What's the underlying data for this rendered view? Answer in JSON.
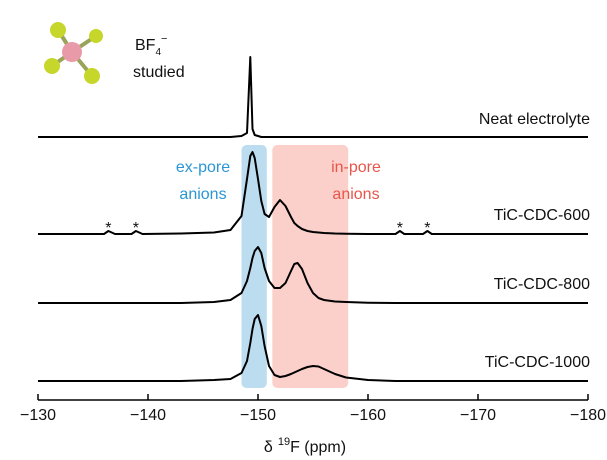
{
  "chart_data": {
    "type": "line",
    "x_label": {
      "prefix": "δ",
      "sup": "19",
      "main": "F (ppm)"
    },
    "molecule_label": {
      "main": "BF",
      "sub": "4",
      "sup": "−",
      "line2": "studied"
    },
    "xlim": [
      -130,
      -180
    ],
    "xticks": [
      {
        "value": -130,
        "label": "−130"
      },
      {
        "value": -140,
        "label": "−140"
      },
      {
        "value": -150,
        "label": "−150"
      },
      {
        "value": -160,
        "label": "−160"
      },
      {
        "value": -170,
        "label": "−170"
      },
      {
        "value": -180,
        "label": "−180"
      }
    ],
    "ylim": [
      0,
      100
    ],
    "x": [
      -130,
      -134,
      -136,
      -136.4,
      -137,
      -138.5,
      -138.9,
      -139.5,
      -143,
      -146,
      -147.5,
      -148.5,
      -149,
      -149.3,
      -149.5,
      -149.7,
      -150,
      -150.3,
      -150.6,
      -151,
      -151.5,
      -152,
      -152.5,
      -153,
      -153.3,
      -153.6,
      -154,
      -154.5,
      -155,
      -155.5,
      -156,
      -157,
      -158,
      -160,
      -162.5,
      -162.9,
      -163.3,
      -165,
      -165.4,
      -165.8,
      -170,
      -180
    ],
    "series": [
      {
        "name": "Neat electrolyte",
        "color": "#000000",
        "values": [
          0,
          0,
          0,
          0,
          0,
          0,
          0,
          0,
          0,
          0,
          0,
          1,
          4,
          80,
          8,
          2,
          1,
          0,
          0,
          0,
          0,
          0,
          0,
          0,
          0,
          0,
          0,
          0,
          0,
          0,
          0,
          0,
          0,
          0,
          0,
          0,
          0,
          0,
          0,
          0,
          0,
          0
        ]
      },
      {
        "name": "TiC-CDC-600",
        "color": "#000000",
        "values": [
          0,
          0,
          0,
          3,
          0,
          0,
          3,
          0,
          0.5,
          1.5,
          4,
          18,
          55,
          78,
          82,
          76,
          55,
          33,
          20,
          17,
          27,
          34,
          28,
          17,
          11,
          8,
          5,
          3,
          2,
          1.5,
          1,
          0.5,
          0.3,
          0,
          0,
          3,
          0,
          0,
          3,
          0,
          0,
          0
        ]
      },
      {
        "name": "TiC-CDC-800",
        "color": "#000000",
        "values": [
          0,
          0,
          0,
          0,
          0,
          0,
          0,
          0,
          0,
          1,
          3,
          10,
          22,
          35,
          45,
          52,
          56,
          50,
          35,
          22,
          15,
          15,
          20,
          32,
          39,
          40,
          34,
          20,
          10,
          5,
          3,
          1.5,
          1,
          0.3,
          0,
          0,
          0,
          0,
          0,
          0,
          0,
          0
        ]
      },
      {
        "name": "TiC-CDC-1000",
        "color": "#000000",
        "values": [
          0,
          0,
          0,
          0,
          0,
          0,
          0,
          0,
          0,
          1,
          2,
          8,
          20,
          38,
          52,
          62,
          66,
          55,
          35,
          15,
          6,
          4,
          5,
          7,
          8.5,
          10,
          12,
          14,
          15,
          14.5,
          12,
          7,
          3.5,
          1,
          0,
          0,
          0,
          0,
          0,
          0,
          0,
          0
        ]
      }
    ],
    "regions": [
      {
        "label": [
          "ex-pore",
          "anions"
        ],
        "xlim": [
          -148.5,
          -150.8
        ],
        "color": "#bcdcf0",
        "text_color": "#2a96d4"
      },
      {
        "label": [
          "in-pore",
          "anions"
        ],
        "xlim": [
          -151.3,
          -158.2
        ],
        "color": "#fbd0ca",
        "text_color": "#e8554b"
      }
    ],
    "sideband_marks": {
      "label": "*",
      "x": [
        -136.4,
        -138.9,
        -162.9,
        -165.4
      ]
    }
  }
}
